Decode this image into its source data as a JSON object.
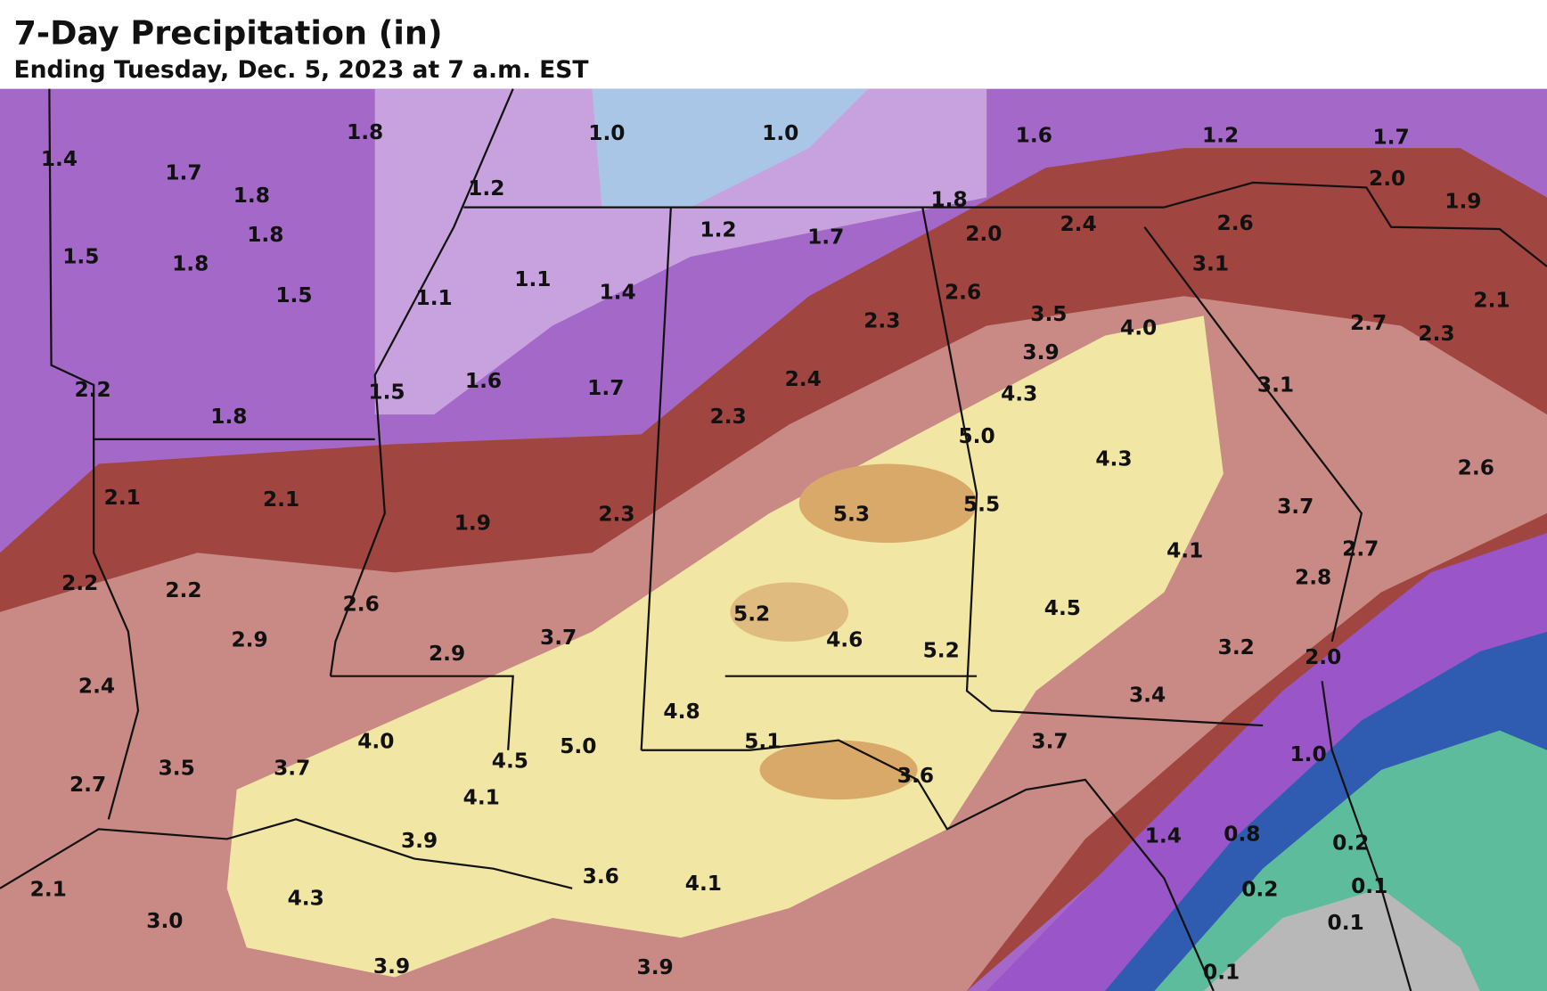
{
  "header": {
    "title": "7-Day Precipitation (in)",
    "subtitle": "Ending Tuesday, Dec. 5, 2023 at 7 a.m. EST"
  },
  "labels": [
    "1.4",
    "1.7",
    "1.8",
    "1.8",
    "1.8",
    "1.5",
    "1.8",
    "1.5",
    "2.2",
    "1.8",
    "1.0",
    "1.0",
    "1.2",
    "1.1",
    "1.1",
    "1.4",
    "1.5",
    "1.6",
    "1.7",
    "1.6",
    "1.2",
    "1.7",
    "2.0",
    "1.9",
    "1.8",
    "1.2",
    "1.7",
    "2.0",
    "2.4",
    "2.6",
    "3.1",
    "2.6",
    "2.3",
    "3.5",
    "4.0",
    "3.9",
    "2.7",
    "2.3",
    "2.1",
    "2.4",
    "2.3",
    "4.3",
    "3.1",
    "5.0",
    "4.3",
    "2.6",
    "2.1",
    "2.1",
    "1.9",
    "2.3",
    "5.3",
    "5.5",
    "3.7",
    "2.7",
    "4.1",
    "2.2",
    "2.2",
    "2.6",
    "2.8",
    "2.9",
    "5.2",
    "4.5",
    "3.7",
    "4.6",
    "5.2",
    "3.2",
    "2.0",
    "2.4",
    "2.9",
    "3.4",
    "4.0",
    "4.8",
    "5.0",
    "5.1",
    "3.7",
    "1.0",
    "3.5",
    "3.7",
    "4.5",
    "2.7",
    "4.1",
    "3.6",
    "1.4",
    "0.8",
    "0.2",
    "3.9",
    "3.6",
    "4.1",
    "0.2",
    "0.1",
    "2.1",
    "4.3",
    "3.0",
    "0.1",
    "3.9",
    "3.9",
    "0.1"
  ]
}
